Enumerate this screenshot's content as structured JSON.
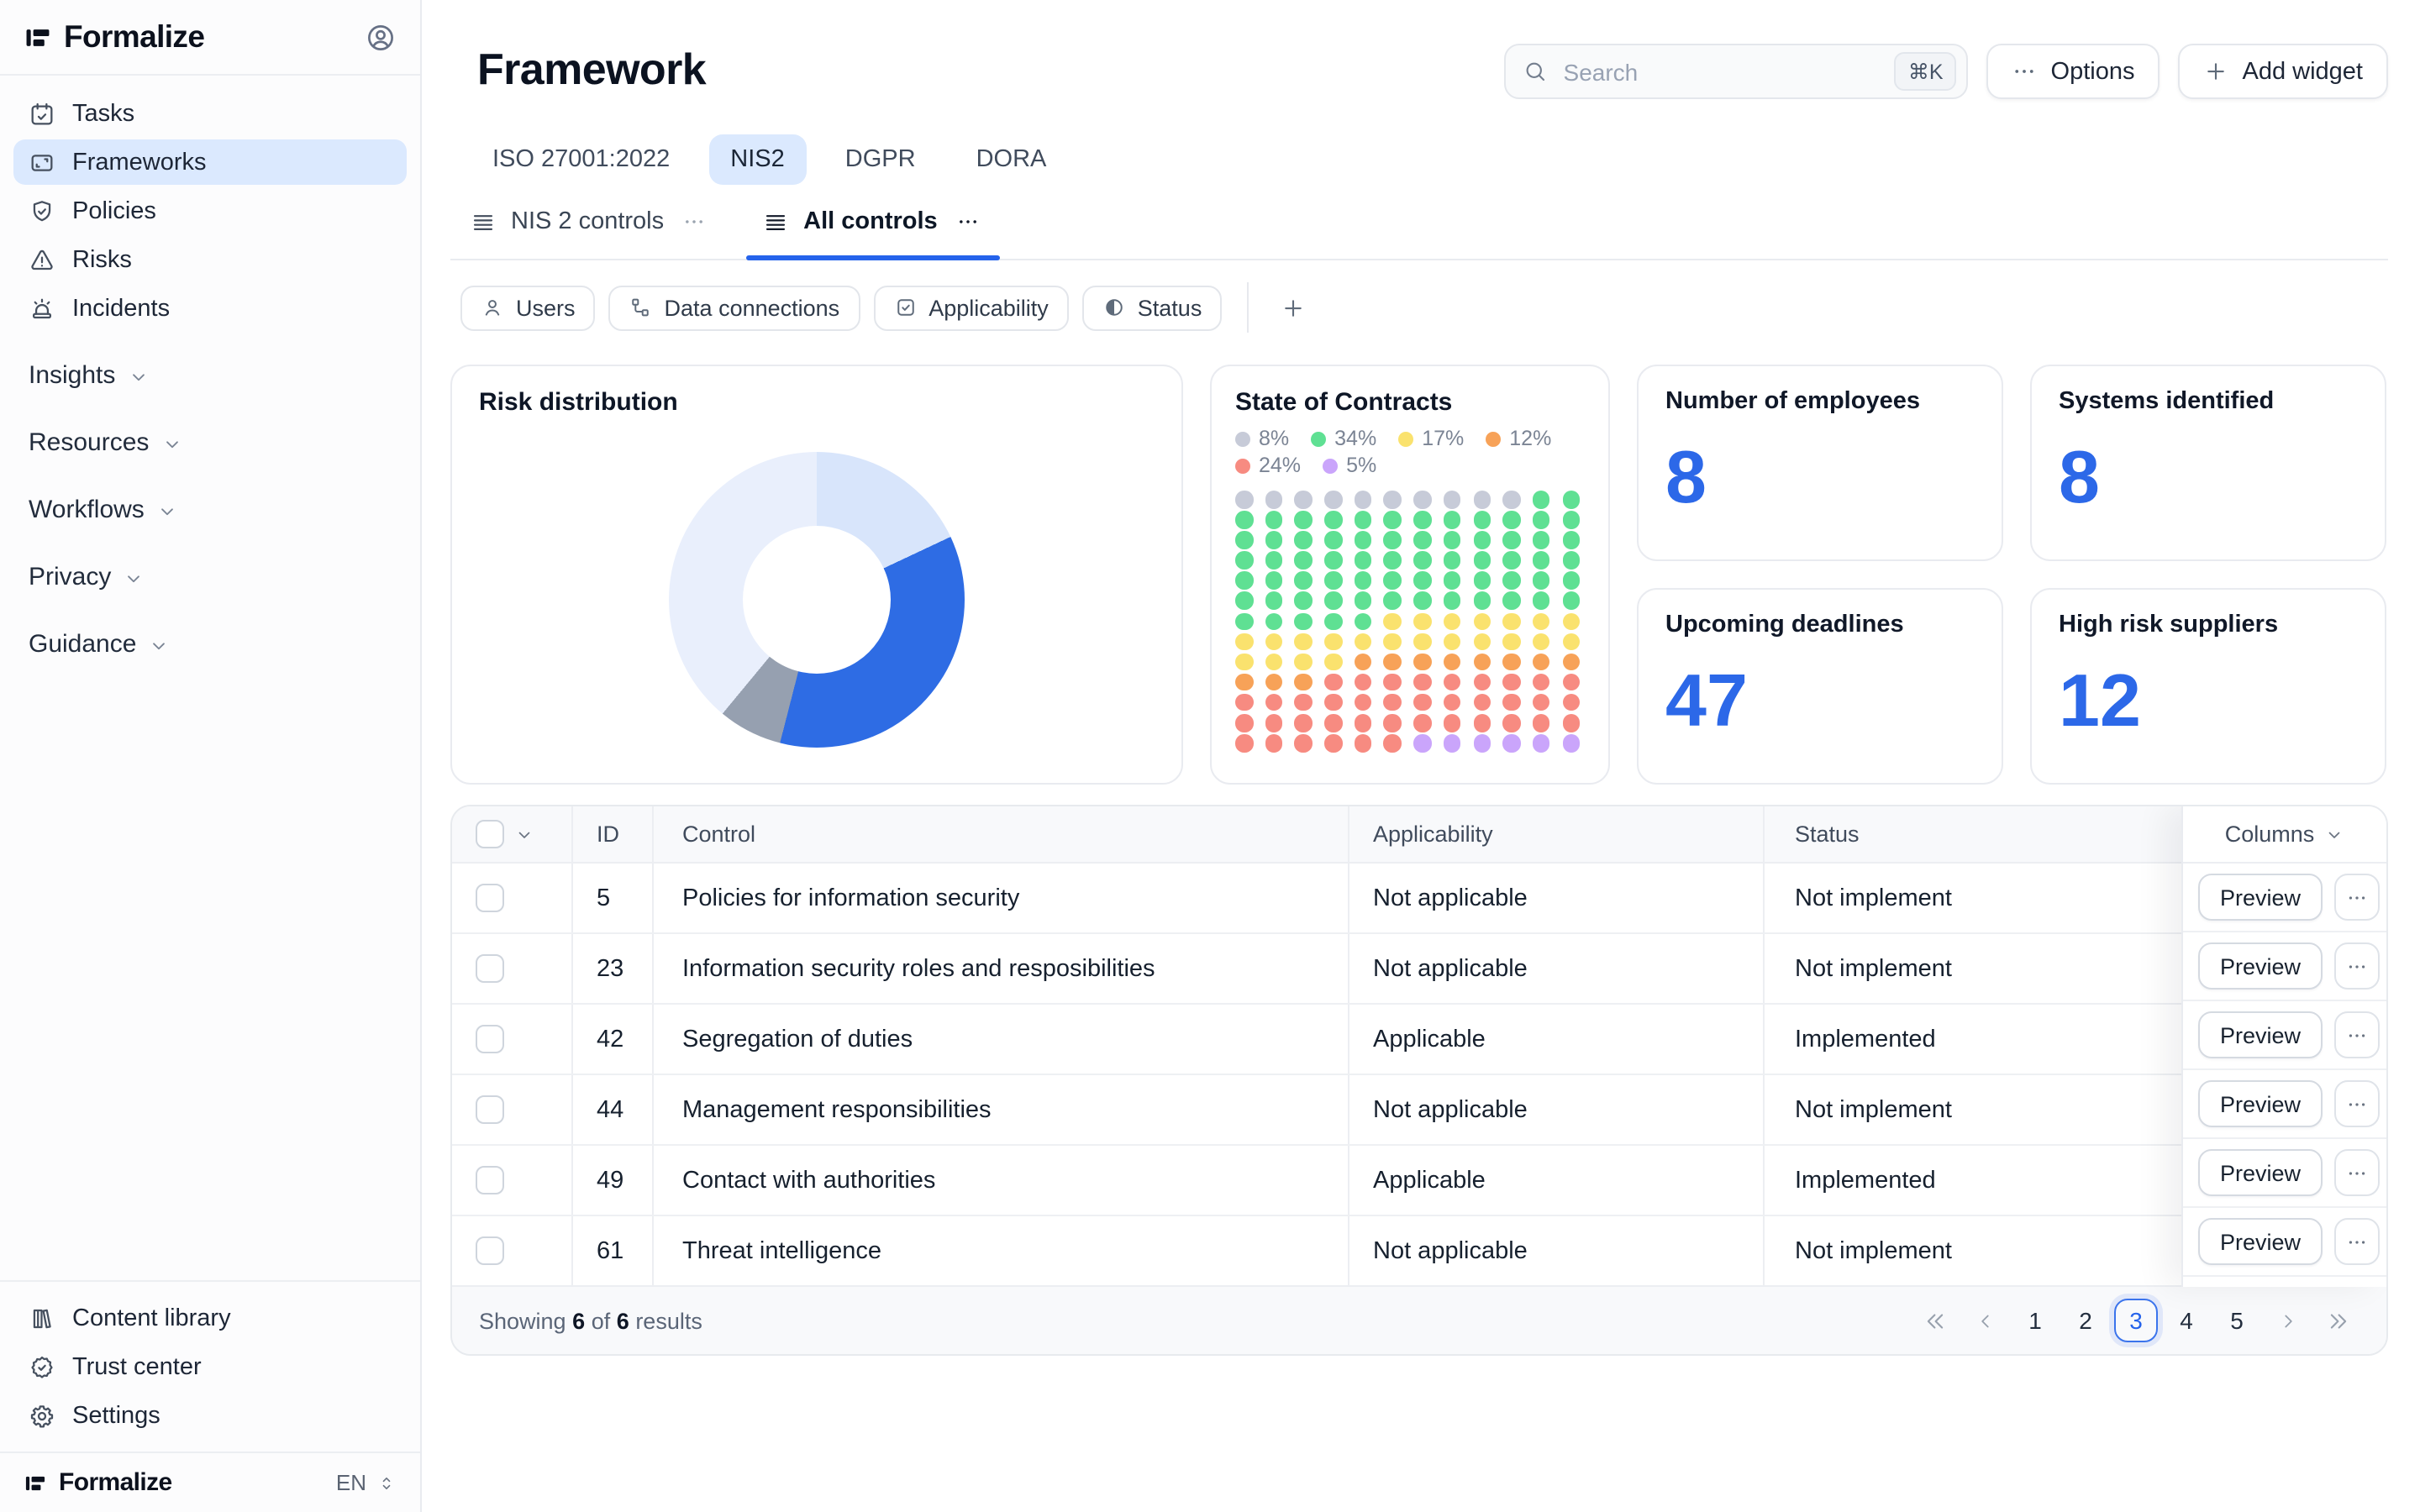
{
  "app": {
    "name": "Formalize",
    "language": "EN"
  },
  "sidebar": {
    "nav": [
      {
        "label": "Tasks",
        "icon": "calendar-check-icon",
        "active": false
      },
      {
        "label": "Frameworks",
        "icon": "frame-icon",
        "active": true
      },
      {
        "label": "Policies",
        "icon": "shield-check-icon",
        "active": false
      },
      {
        "label": "Risks",
        "icon": "alert-triangle-icon",
        "active": false
      },
      {
        "label": "Incidents",
        "icon": "siren-icon",
        "active": false
      }
    ],
    "sections": [
      {
        "label": "Insights",
        "icon": "chevron-down-icon"
      },
      {
        "label": "Resources",
        "icon": "chevron-down-icon"
      },
      {
        "label": "Workflows",
        "icon": "chevron-down-icon"
      },
      {
        "label": "Privacy",
        "icon": "chevron-down-icon"
      },
      {
        "label": "Guidance",
        "icon": "chevron-down-icon"
      }
    ],
    "footer_nav": [
      {
        "label": "Content library",
        "icon": "book-icon"
      },
      {
        "label": "Trust center",
        "icon": "badge-check-icon"
      },
      {
        "label": "Settings",
        "icon": "gear-icon"
      }
    ]
  },
  "header": {
    "title": "Framework",
    "search_placeholder": "Search",
    "search_shortcut": "⌘K",
    "options_label": "Options",
    "add_widget_label": "Add widget"
  },
  "framework_tabs": [
    {
      "label": "ISO 27001:2022",
      "active": false
    },
    {
      "label": "NIS2",
      "active": true
    },
    {
      "label": "DGPR",
      "active": false
    },
    {
      "label": "DORA",
      "active": false
    }
  ],
  "view_tabs": [
    {
      "label": "NIS 2 controls",
      "icon": "list-icon",
      "more_icon": "dots-icon",
      "active": false
    },
    {
      "label": "All controls",
      "icon": "list-icon",
      "more_icon": "dots-icon",
      "active": true
    }
  ],
  "filters": {
    "chips": [
      {
        "label": "Users",
        "icon": "user-icon"
      },
      {
        "label": "Data connections",
        "icon": "connections-icon"
      },
      {
        "label": "Applicability",
        "icon": "checkbox-icon"
      },
      {
        "label": "Status",
        "icon": "half-circle-icon"
      }
    ],
    "add_icon": "plus-icon"
  },
  "widgets": {
    "risk_distribution": {
      "title": "Risk distribution",
      "segments": [
        {
          "color": "#d8e5fb",
          "pct": 18
        },
        {
          "color": "#2e6ce4",
          "pct": 36
        },
        {
          "color": "#96a0b0",
          "pct": 7
        },
        {
          "color": "#e9effc",
          "pct": 39
        }
      ]
    },
    "state_of_contracts": {
      "title": "State of Contracts",
      "colors": {
        "gray": "#c7cbd8",
        "green": "#5fe093",
        "yellow": "#fae26e",
        "orange": "#f7a258",
        "red": "#f78b81",
        "purple": "#caa5fb"
      },
      "legend": [
        {
          "value": "8%",
          "color_key": "gray"
        },
        {
          "value": "34%",
          "color_key": "green"
        },
        {
          "value": "17%",
          "color_key": "yellow"
        },
        {
          "value": "12%",
          "color_key": "orange"
        },
        {
          "value": "24%",
          "color_key": "red"
        },
        {
          "value": "5%",
          "color_key": "purple"
        }
      ],
      "dot_rows": [
        [
          [
            "gray",
            10
          ],
          [
            "green",
            2
          ]
        ],
        [
          [
            "green",
            12
          ]
        ],
        [
          [
            "green",
            12
          ]
        ],
        [
          [
            "green",
            12
          ]
        ],
        [
          [
            "green",
            12
          ]
        ],
        [
          [
            "green",
            12
          ]
        ],
        [
          [
            "green",
            5
          ],
          [
            "yellow",
            7
          ]
        ],
        [
          [
            "yellow",
            12
          ]
        ],
        [
          [
            "yellow",
            4
          ],
          [
            "orange",
            8
          ]
        ],
        [
          [
            "orange",
            3
          ],
          [
            "red",
            9
          ]
        ],
        [
          [
            "red",
            12
          ]
        ],
        [
          [
            "red",
            12
          ]
        ],
        [
          [
            "red",
            6
          ],
          [
            "purple",
            6
          ]
        ]
      ]
    },
    "stats": [
      {
        "label": "Number of employees",
        "value": "8"
      },
      {
        "label": "Systems identified",
        "value": "8"
      },
      {
        "label": "Upcoming deadlines",
        "value": "47"
      },
      {
        "label": "High risk suppliers",
        "value": "12"
      }
    ]
  },
  "chart_data": [
    {
      "type": "pie",
      "title": "Risk distribution",
      "values": [
        18,
        36,
        7,
        39
      ],
      "colors": [
        "#d8e5fb",
        "#2e6ce4",
        "#96a0b0",
        "#e9effc"
      ],
      "legend_position": "none"
    },
    {
      "type": "heatmap",
      "title": "State of Contracts",
      "categories": [
        "gray",
        "green",
        "yellow",
        "orange",
        "red",
        "purple"
      ],
      "values": [
        8,
        34,
        17,
        12,
        24,
        5
      ],
      "unit": "%"
    }
  ],
  "table": {
    "columns_label": "Columns",
    "headers": {
      "id": "ID",
      "control": "Control",
      "applicability": "Applicability",
      "status": "Status"
    },
    "rows": [
      {
        "id": "5",
        "control": "Policies for information security",
        "applicability": "Not applicable",
        "status": "Not implement",
        "action": "Preview"
      },
      {
        "id": "23",
        "control": "Information security roles and resposibilities",
        "applicability": "Not applicable",
        "status": "Not implement",
        "action": "Preview"
      },
      {
        "id": "42",
        "control": "Segregation of duties",
        "applicability": "Applicable",
        "status": "Implemented",
        "action": "Preview"
      },
      {
        "id": "44",
        "control": "Management responsibilities",
        "applicability": "Not applicable",
        "status": "Not implement",
        "action": "Preview"
      },
      {
        "id": "49",
        "control": "Contact with authorities",
        "applicability": "Applicable",
        "status": "Implemented",
        "action": "Preview"
      },
      {
        "id": "61",
        "control": "Threat intelligence",
        "applicability": "Not applicable",
        "status": "Not implement",
        "action": "Preview"
      }
    ],
    "footer": {
      "prefix": "Showing",
      "shown": "6",
      "of": "of",
      "total": "6",
      "suffix": "results"
    },
    "pagination": {
      "pages": [
        "1",
        "2",
        "3",
        "4",
        "5"
      ],
      "active": "3"
    }
  }
}
